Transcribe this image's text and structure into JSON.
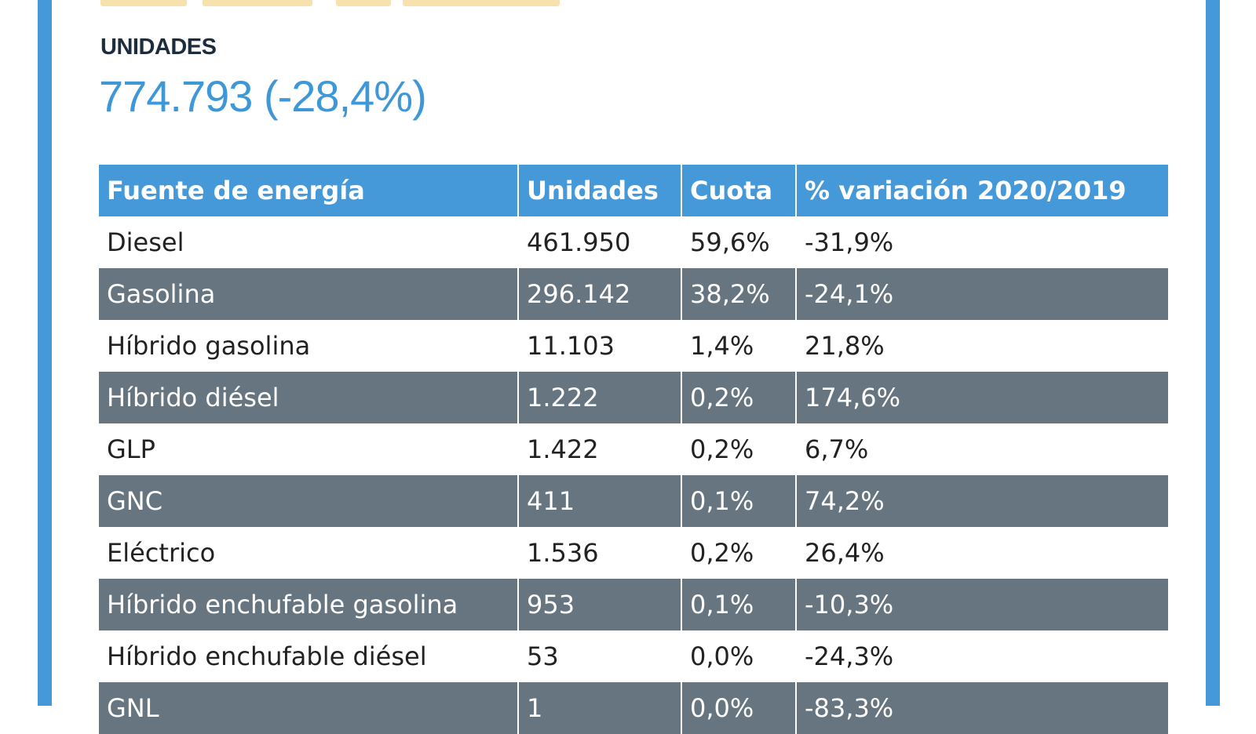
{
  "summary": {
    "label": "UNIDADES",
    "value": "774.793 (-28,4%)"
  },
  "colors": {
    "accent_blue": "#4599d8",
    "dark_row": "#66757f",
    "value_blue": "#3e97d6",
    "label_dark": "#1e2d3d"
  },
  "table": {
    "headers": [
      "Fuente de energía",
      "Unidades",
      "Cuota",
      "% variación 2020/2019"
    ],
    "rows": [
      [
        "Diesel",
        "461.950",
        "59,6%",
        "-31,9%"
      ],
      [
        "Gasolina",
        "296.142",
        "38,2%",
        "-24,1%"
      ],
      [
        "Híbrido gasolina",
        "11.103",
        "1,4%",
        "21,8%"
      ],
      [
        "Híbrido diésel",
        "1.222",
        "0,2%",
        "174,6%"
      ],
      [
        "GLP",
        "1.422",
        "0,2%",
        "6,7%"
      ],
      [
        "GNC",
        "411",
        "0,1%",
        "74,2%"
      ],
      [
        "Eléctrico",
        "1.536",
        "0,2%",
        "26,4%"
      ],
      [
        "Híbrido enchufable gasolina",
        "953",
        "0,1%",
        "-10,3%"
      ],
      [
        "Híbrido enchufable diésel",
        "53",
        "0,0%",
        "-24,3%"
      ],
      [
        "GNL",
        "1",
        "0,0%",
        "-83,3%"
      ]
    ]
  }
}
